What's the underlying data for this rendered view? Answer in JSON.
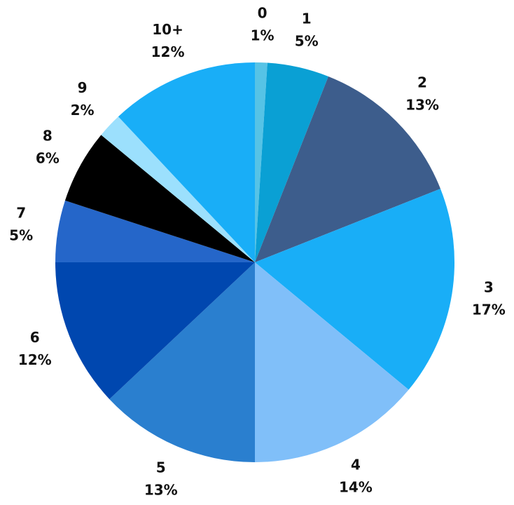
{
  "chart_data": {
    "type": "pie",
    "categories": [
      "0",
      "1",
      "2",
      "3",
      "4",
      "5",
      "6",
      "7",
      "8",
      "9",
      "10+"
    ],
    "values": [
      1,
      5,
      13,
      17,
      14,
      13,
      12,
      5,
      6,
      2,
      12
    ],
    "value_labels": [
      "1%",
      "5%",
      "13%",
      "17%",
      "14%",
      "13%",
      "12%",
      "5%",
      "6%",
      "2%",
      "12%"
    ],
    "colors": [
      "#56c3e6",
      "#0aa0d4",
      "#3d5d8c",
      "#19aef7",
      "#80bff9",
      "#2a7fcf",
      "#0047af",
      "#2566c9",
      "#000000",
      "#9ce0fd",
      "#19aef7"
    ]
  }
}
